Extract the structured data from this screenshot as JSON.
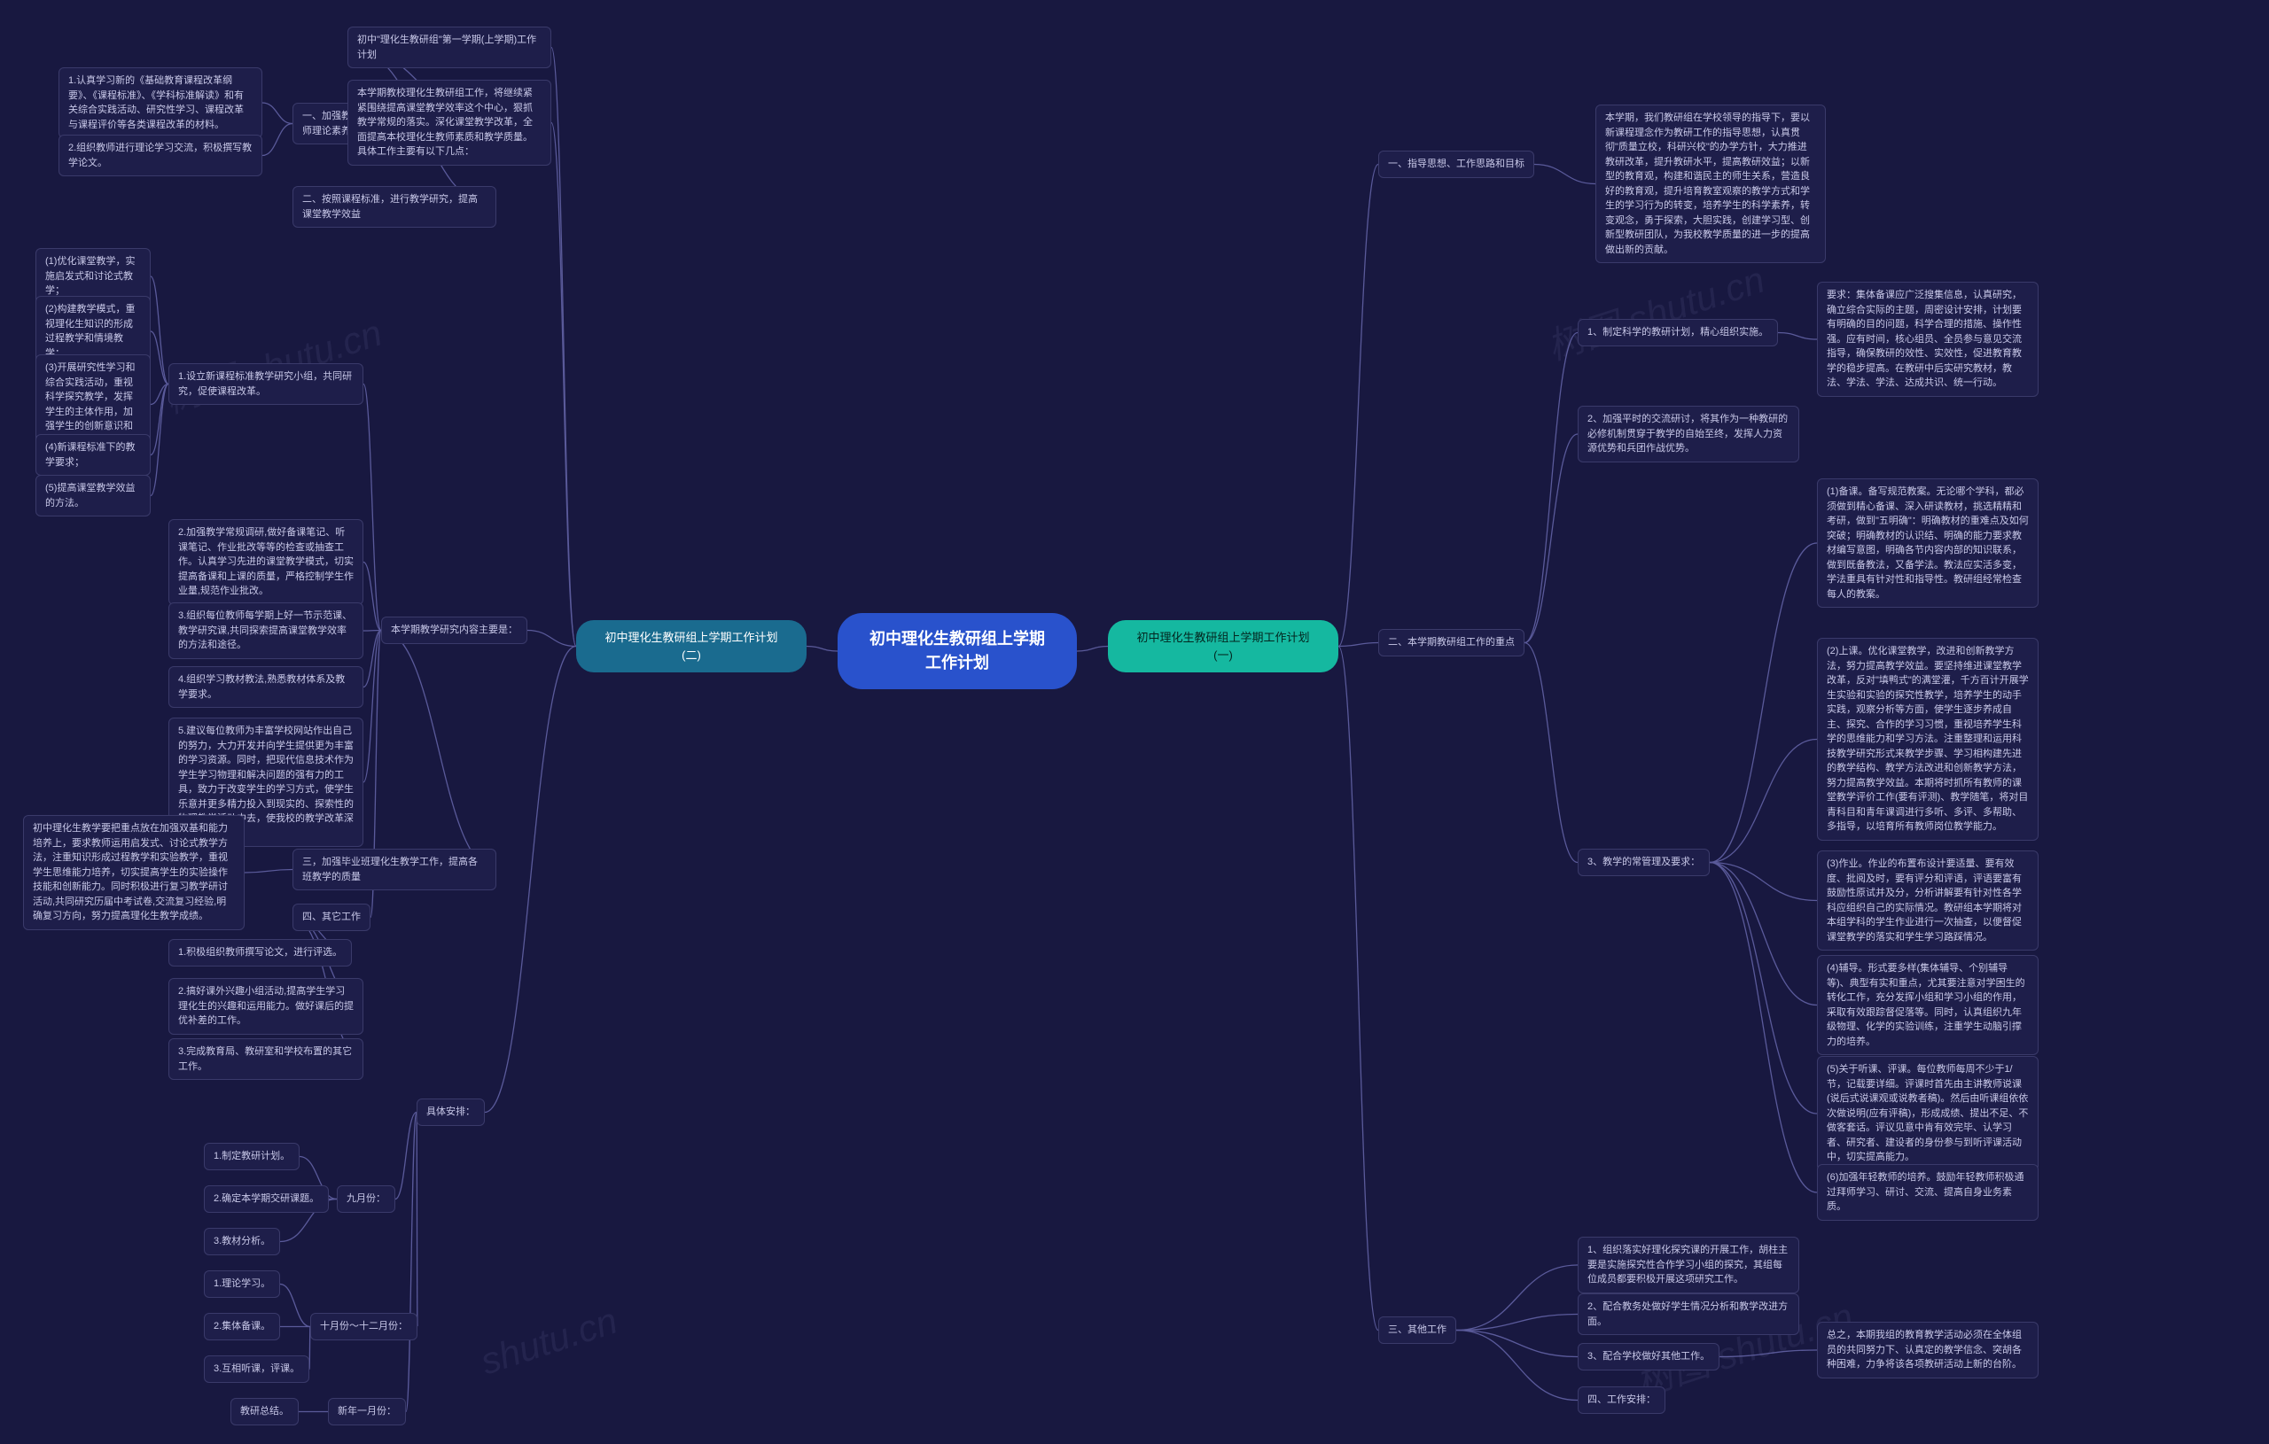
{
  "colors": {
    "background": "#181840",
    "node_bg": "#1e1e4a",
    "node_border": "#3a3a6a",
    "node_text": "#c8c8e8",
    "center_bg": "#2952cc",
    "branch_left_bg": "#1a6b8f",
    "branch_right_bg": "#15b8a0",
    "line": "#5a5a9a"
  },
  "center": "初中理化生教研组上学期\n工作计划",
  "branch_left": "初中理化生教研组上学期工作计划\n(二)",
  "branch_right": "初中理化生教研组上学期工作计划\n(一)",
  "right": {
    "s1": {
      "title": "一、指导思想、工作思路和目标",
      "leaf": "本学期，我们教研组在学校领导的指导下，要以新课程理念作为教研工作的指导思想，认真贯彻\"质量立校，科研兴校\"的办学方针，大力推进教研改革，提升教研水平，提高教研效益；以新型的教育观，构建和谐民主的师生关系，营造良好的教育观，提升培育教室观察的教学方式和学生的学习行为的转变，培养学生的科学素养，转变观念，勇于探索，大胆实践，创建学习型、创新型教研团队，为我校教学质量的进一步的提高做出新的贡献。"
    },
    "s2": {
      "title": "二、本学期教研组工作的重点",
      "sub1": "1、制定科学的教研计划，精心组织实施。",
      "sub1_leaf": "要求：集体备课应广泛搜集信息，认真研究，确立综合实际的主题，周密设计安排，计划要有明确的目的问题，科学合理的措施、操作性强。应有时间，核心组员、全员参与意见交流指导，确保教研的效性、实效性，促进教育教学的稳步提高。在教研中后实研究教材，教法、学法、学法、达成共识、统一行动。",
      "sub2": "2、加强平时的交流研讨，将其作为一种教研的必修机制贯穿于教学的自始至终，发挥人力资源优势和兵团作战优势。",
      "sub3": "3、教学的常管理及要求：",
      "sub3_items": [
        "(1)备课。备写规范教案。无论哪个学科，都必须做到精心备课、深入研读教材，挑选精精和考研，做到\"五明确\"：明确教材的重难点及如何突破；明确教材的认识结、明确的能力要求教材编写意图，明确各节内容内部的知识联系，做到既备教法，又备学法。教法应实活多变，学法重具有针对性和指导性。教研组经常检查每人的教案。",
        "(2)上课。优化课堂教学，改进和创新教学方法，努力提高教学效益。要坚持维进课堂教学改革，反对\"填鸭式\"的满堂灌，千方百计开展学生实验和实验的探究性教学，培养学生的动手实践，观察分析等方面，使学生逐步养成自主、探究、合作的学习习惯，重视培养学生科学的思维能力和学习方法。注重整理和运用科技教学研究形式来教学步骤、学习相构建先进的教学结构、教学方法改进和创新教学方法，努力提高教学效益。本期将时抓所有教师的课堂教学评价工作(要有评测)、教学随笔，将对目青科目和青年课调进行多听、多评、多帮助、多指导，以培育所有教师岗位教学能力。",
        "(3)作业。作业的布置布设计要适量、要有效度、批阅及时，要有评分和评语，评语要富有鼓励性原试并及分，分析讲解要有针对性各学科应组织自己的实际情况。教研组本学期将对本组学科的学生作业进行一次抽查，以便督促课堂教学的落实和学生学习路踩情况。",
        "(4)辅导。形式要多样(集体辅导、个别辅导等)、典型有实和重点，尤其要注意对学困生的转化工作，充分发挥小组和学习小组的作用，采取有效跟踪督促落等。同时，认真组织九年级物理、化学的实验训练，注重学生动脑引撑力的培养。",
        "(5)关于听课、评课。每位教师每周不少于1/节，记载要详细。评课时首先由主讲教师说课(说后式说课观或说教者稿)。然后由听课组依依次做说明(应有评稿)，形成成绩、提出不足、不做客套话。评议见意中肯有效完毕、认学习者、研究者、建设者的身份参与到听评课活动中，切实提高能力。",
        "(6)加强年轻教师的培养。鼓励年轻教师积极通过拜师学习、研讨、交流、提高自身业务素质。"
      ]
    },
    "s3": {
      "title": "三、其他工作",
      "items": [
        "1、组织落实好理化探究课的开展工作，胡柱主要是实施探究性合作学习小组的探究，其组每位成员都要积极开展这项研究工作。",
        "2、配合教务处做好学生情况分析和教学改进方面。",
        "3、配合学校做好其他工作。"
      ],
      "conclusion": "总之，本期我组的教育教学活动必须在全体组员的共同努力下、认真定的教学信念、突胡各种困难，力争将该各项教研活动上新的台阶。",
      "s4": "四、工作安排："
    }
  },
  "left": {
    "topbox": "初中\"理化生教研组\"第一学期(上学期)工作计划",
    "s1": {
      "title": "一、加强教育教学理论学习，提高物理教师理论素养",
      "items": [
        "1.认真学习新的《基础教育课程改革纲要》、《课程标准》、《学科标准解读》和有关综合实践活动、研究性学习、课程改革与课程评价等各类课程改革的材料。",
        "2.组织教师进行理论学习交流，积极撰写教学论文。"
      ]
    },
    "s2": "二、按照课程标准，进行教学研究，提高课堂教学效益",
    "s2_intro": "本学期教校理化生教研组工作，将继续紧紧围绕提高课堂教学效率这个中心，狠抓教学常规的落实。深化课堂教学改革，全面提高本校理化生教师素质和教学质量。具体工作主要有以下几点：",
    "s2_main": "本学期教学研究内容主要是：",
    "s2_items": [
      {
        "title": "1.设立新课程标准教学研究小组，共同研究，促使课程改革。",
        "subs": [
          "(1)优化课堂教学，实施启发式和讨论式教学；",
          "(2)构建教学模式，重视理化生知识的形成过程教学和情境教学；",
          "(3)开展研究性学习和综合实践活动，重视科学探究教学，发挥学生的主体作用，加强学生的创新意识和实践能力的培养；",
          "(4)新课程标准下的教学要求；",
          "(5)提高课堂教学效益的方法。"
        ]
      },
      {
        "title": "2.加强教学常规调研,做好备课笔记、听课笔记、作业批改等等的检查或抽查工作。认真学习先进的课堂教学模式，切实提高备课和上课的质量，严格控制学生作业量,规范作业批改。"
      },
      {
        "title": "3.组织每位教师每学期上好一节示范课、教学研究课,共同探索提高课堂教学效率的方法和途径。"
      },
      {
        "title": "4.组织学习教材教法,熟悉教材体系及教学要求。"
      },
      {
        "title": "5.建议每位教师为丰富学校网站作出自己的努力，大力开发并向学生提供更为丰富的学习资源。同时，把现代信息技术作为学生学习物理和解决问题的强有力的工具，致力于改变学生的学习方式，使学生乐意并更多精力投入到现实的、探索性的物理教学活动中去，使我校的教学改革深入的发展。"
      }
    ],
    "s3": {
      "title": "三，加强毕业班理化生教学工作，提高各班教学的质量",
      "leaf": "初中理化生教学要把重点放在加强双基和能力培养上，要求教师运用启发式、讨论式教学方法，注重知识形成过程教学和实验教学，重视学生思维能力培养，切实提高学生的实验操作技能和创新能力。同时积极进行复习教学研讨活动,共同研究历届中考试卷,交流复习经验,明确复习方向，努力提高理化生教学成绩。"
    },
    "s4": {
      "title": "四、其它工作",
      "items": [
        "1.积极组织教师撰写论文，进行评选。",
        "2.搞好课外兴趣小组活动,提高学生学习理化生的兴趣和运用能力。做好课后的提优补差的工作。",
        "3.完成教育局、教研室和学校布置的其它工作。"
      ]
    },
    "schedule_title": "具体安排：",
    "schedule": [
      {
        "month": "九月份：",
        "items": [
          "1.制定教研计划。",
          "2.确定本学期交研课题。",
          "3.教材分析。"
        ]
      },
      {
        "month": "十月份～十二月份：",
        "items": [
          "1.理论学习。",
          "2.集体备课。",
          "3.互相听课，评课。"
        ]
      },
      {
        "month": "新年一月份：",
        "items": [
          "教研总结。"
        ]
      }
    ]
  },
  "watermarks": [
    "树图 shutu.cn",
    "shutu.cn",
    "树图 shutu.cn",
    "树图 shutu.cn"
  ]
}
